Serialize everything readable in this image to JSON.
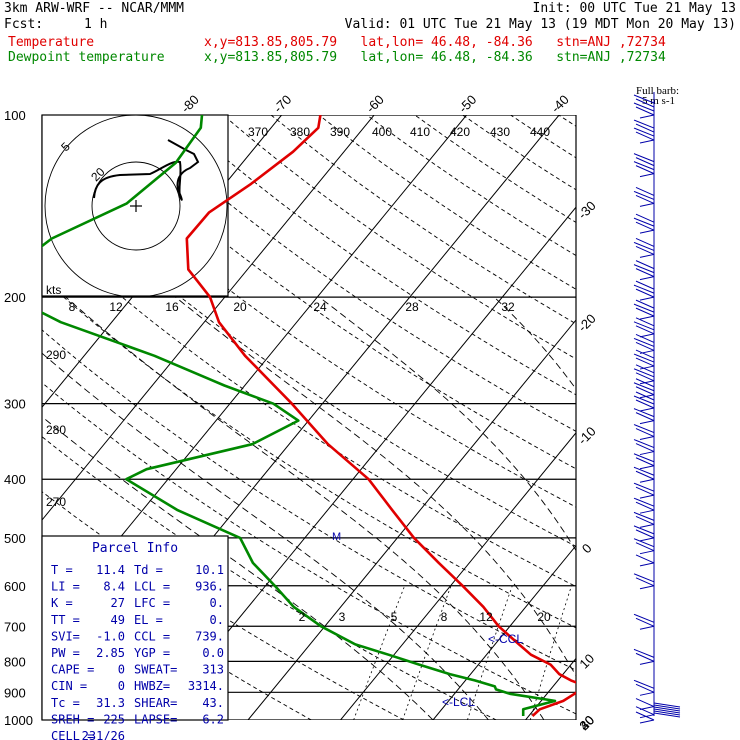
{
  "header": {
    "model": "3km ARW-WRF -- NCAR/MMM",
    "init": "Init: 00 UTC Tue 21 May 13",
    "fcst_label": "Fcst:",
    "fcst_value": "1 h",
    "valid": "Valid: 01 UTC Tue 21 May 13 (19 MDT Mon 20 May 13)",
    "temp_label": "Temperature",
    "temp_loc": "x,y=813.85,805.79   lat,lon= 46.48, -84.36   stn=ANJ ,72734",
    "dew_label": "Dewpoint temperature",
    "dew_loc": "x,y=813.85,805.79   lat,lon= 46.48, -84.36   stn=ANJ ,72734"
  },
  "colors": {
    "temperature": "#e00000",
    "dewpoint": "#008800",
    "wind": "#0000aa",
    "grid": "#000000"
  },
  "chart_data": {
    "type": "line",
    "subtype": "skew-T log-p sounding",
    "yscale": "log",
    "ylim": [
      1000,
      100
    ],
    "pressure_ticks": [
      100,
      200,
      300,
      400,
      500,
      600,
      700,
      800,
      900,
      1000
    ],
    "isotherm_labels": [
      -80,
      -70,
      -60,
      -50,
      -40,
      -30,
      -20,
      -10,
      0,
      10,
      20,
      30,
      40
    ],
    "theta_labels": [
      370,
      380,
      390,
      400,
      410,
      420,
      430,
      440
    ],
    "mixing_ratio_labels_upper": [
      8,
      12,
      16,
      20,
      24,
      28,
      32
    ],
    "mixing_ratio_labels_lower": [
      2,
      3,
      5,
      8,
      12,
      20
    ],
    "dry_adiabat_labels": [
      290,
      280,
      270
    ],
    "kts_label": "kts",
    "barb_legend": [
      "Full barb:",
      "5 m s-1"
    ],
    "hodograph_rings": [
      5,
      20
    ],
    "hodograph_labels": [
      "5",
      "20"
    ],
    "annotations": [
      "M",
      "<-CCL",
      "<-LCL"
    ],
    "series": [
      {
        "name": "Temperature",
        "color": "#e00000",
        "pressure": [
          985,
          960,
          930,
          880,
          860,
          840,
          810,
          780,
          750,
          700,
          650,
          600,
          550,
          500,
          450,
          400,
          350,
          300,
          250,
          220,
          200,
          180,
          160,
          145,
          130,
          115,
          105,
          100
        ],
        "temperature": [
          10.4,
          10.6,
          12.4,
          13.6,
          11.4,
          9.6,
          7.8,
          4.8,
          2.6,
          -1.2,
          -4.6,
          -8.7,
          -13.3,
          -18.2,
          -23.0,
          -28.3,
          -35.8,
          -43.3,
          -52.6,
          -58.4,
          -61.6,
          -66.4,
          -69.3,
          -69.2,
          -67.2,
          -65.5,
          -64.9,
          -65.8
        ]
      },
      {
        "name": "Dewpoint temperature",
        "color": "#008800",
        "pressure": [
          985,
          960,
          930,
          905,
          890,
          880,
          860,
          840,
          810,
          780,
          750,
          700,
          650,
          600,
          550,
          500,
          450,
          400,
          385,
          350,
          320,
          300,
          280,
          250,
          220,
          200,
          180,
          160,
          140,
          120,
          105,
          100
        ],
        "temperature": [
          9.4,
          8.8,
          11.5,
          6.0,
          4.1,
          3.7,
          1.0,
          -2.2,
          -6.4,
          -10.6,
          -15.1,
          -20.4,
          -25.1,
          -29.0,
          -33.4,
          -37.0,
          -46.2,
          -54.5,
          -53.2,
          -44.0,
          -41.1,
          -45.3,
          -52.2,
          -62.4,
          -75.5,
          -83.1,
          -85.5,
          -83.9,
          -78.9,
          -77.2,
          -77.6,
          -78.6
        ]
      }
    ],
    "wind_barbs": {
      "pressure": [
        100,
        110,
        125,
        140,
        155,
        170,
        185,
        200,
        215,
        230,
        245,
        260,
        275,
        290,
        305,
        320,
        340,
        360,
        380,
        400,
        425,
        450,
        475,
        500,
        525,
        550,
        600,
        700,
        800,
        900,
        950,
        980,
        1000
      ],
      "speed_ms": [
        18,
        18,
        18,
        17,
        17,
        17,
        16,
        16,
        15,
        15,
        14,
        14,
        14,
        13,
        13,
        12,
        12,
        11,
        10,
        10,
        9,
        9,
        9,
        8,
        8,
        7,
        8,
        9,
        10,
        8,
        6,
        5,
        5
      ]
    },
    "parcel_info": {
      "title": "Parcel Info",
      "rows": [
        [
          "T  =",
          "11.4",
          "Td =",
          "10.1"
        ],
        [
          "LI =",
          "8.4",
          "LCL =",
          "936."
        ],
        [
          "K  =",
          "27",
          "LFC =",
          "0."
        ],
        [
          "TT =",
          "49",
          "EL  =",
          "0."
        ],
        [
          "SVI=",
          "-1.0",
          "CCL =",
          "739."
        ],
        [
          "PW =",
          "2.85",
          "YGP =",
          "0.0"
        ],
        [
          "CAPE =",
          "0",
          "SWEAT=",
          "313"
        ],
        [
          "CIN =",
          "0",
          "HWBZ=",
          "3314."
        ],
        [
          "Tc =",
          "31.3",
          "SHEAR=",
          "43."
        ],
        [
          "SREH =",
          "225",
          "LAPSE=",
          "6.2"
        ],
        [
          "CELL =",
          "231/26",
          "",
          ""
        ]
      ]
    }
  }
}
